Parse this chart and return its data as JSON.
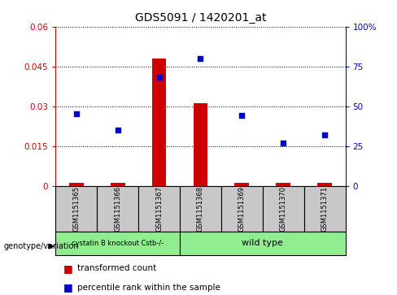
{
  "title": "GDS5091 / 1420201_at",
  "samples": [
    "GSM1151365",
    "GSM1151366",
    "GSM1151367",
    "GSM1151368",
    "GSM1151369",
    "GSM1151370",
    "GSM1151371"
  ],
  "transformed_count": [
    0.001,
    0.001,
    0.048,
    0.031,
    0.001,
    0.001,
    0.001
  ],
  "percentile_rank": [
    45,
    35,
    68,
    80,
    44,
    27,
    32
  ],
  "ylim_left": [
    0,
    0.06
  ],
  "ylim_right": [
    0,
    100
  ],
  "yticks_left": [
    0,
    0.015,
    0.03,
    0.045,
    0.06
  ],
  "yticks_right": [
    0,
    25,
    50,
    75,
    100
  ],
  "ytick_labels_left": [
    "0",
    "0.015",
    "0.03",
    "0.045",
    "0.06"
  ],
  "ytick_labels_right": [
    "0",
    "25",
    "50",
    "75",
    "100%"
  ],
  "bar_color": "#cc0000",
  "dot_color": "#0000cc",
  "grid_color": "#000000",
  "group1_label": "cystatin B knockout Cstb-/-",
  "group2_label": "wild type",
  "group1_indices": [
    0,
    1,
    2
  ],
  "group2_indices": [
    3,
    4,
    5,
    6
  ],
  "group1_color": "#90ee90",
  "group2_color": "#90ee90",
  "genotype_label": "genotype/variation",
  "legend_bar_label": "transformed count",
  "legend_dot_label": "percentile rank within the sample",
  "bar_width": 0.35,
  "tick_label_color_left": "#cc0000",
  "tick_label_color_right": "#0000cc",
  "box_color": "#c8c8c8"
}
